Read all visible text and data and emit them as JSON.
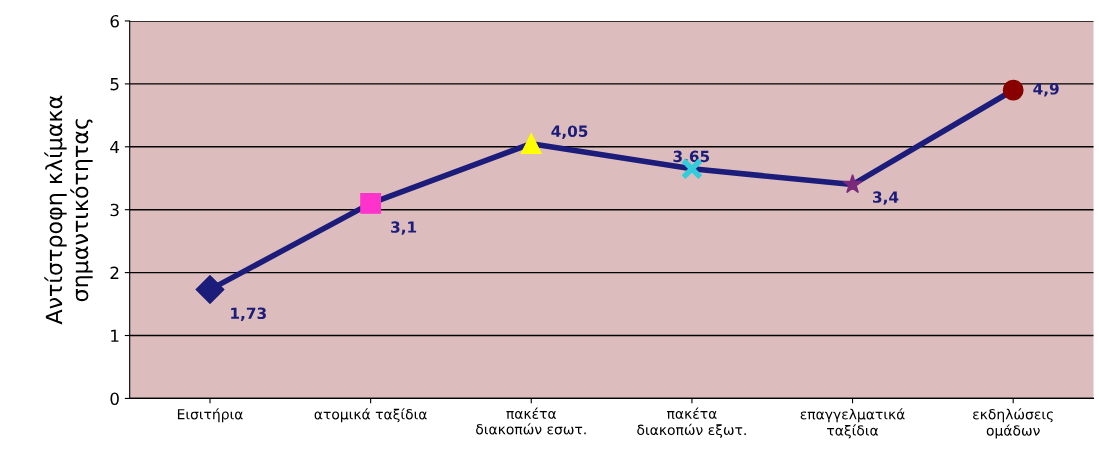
{
  "chart_data": {
    "type": "line",
    "ylabel": "Αντίστροφη κλίμακα\nσημαντικότητας",
    "categories": [
      "Εισιτήρια",
      "ατομικά ταξίδια",
      "πακέτα\nδιακοπών εσωτ.",
      "πακέτα\nδιακοπών εξωτ.",
      "επαγγελματικά\nταξίδια",
      "εκδηλώσεις\nομάδων"
    ],
    "series": [
      {
        "color": "#1c1c7a",
        "values": [
          1.73,
          3.1,
          4.05,
          3.65,
          3.4,
          4.9
        ],
        "colors": [
          "#1c1c7a",
          "#ff33cc",
          "#ffff00",
          "#33ccdd",
          "#7a2a7a",
          "#880000"
        ],
        "marker": [
          "diamond",
          "square",
          "triangle",
          "cross",
          "star",
          "circle"
        ],
        "value_labels": [
          "1,73",
          "3,1",
          "4,05",
          "3,65",
          "3,4",
          "4,9"
        ]
      }
    ],
    "ylim": [
      0,
      6
    ],
    "yticks": [
      0,
      1,
      2,
      3,
      4,
      5,
      6
    ],
    "grid": "y",
    "legend": false
  }
}
